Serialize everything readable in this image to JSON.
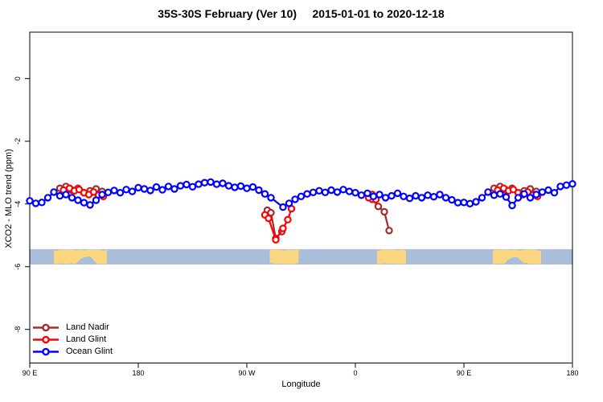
{
  "chart_data": {
    "type": "line",
    "title": "35S-30S February (Ver 10)     2015-01-01 to 2020-12-18",
    "xlabel": "Longitude",
    "ylabel": "XCO2 - MLO trend (ppm)",
    "grid": false,
    "x_axis": {
      "wraps_eastward_from": "90E",
      "span_degrees": [
        90,
        540
      ],
      "ticks": [
        {
          "deg": 90,
          "label": "90 E"
        },
        {
          "deg": 180,
          "label": "180"
        },
        {
          "deg": 270,
          "label": "90 W"
        },
        {
          "deg": 360,
          "label": "0"
        },
        {
          "deg": 450,
          "label": "90 E"
        },
        {
          "deg": 540,
          "label": "180"
        }
      ]
    },
    "y_axis": {
      "range": [
        -9.1,
        1.5
      ],
      "ticks": [
        {
          "value": 0,
          "label": "0"
        },
        {
          "value": -2,
          "label": "-2"
        },
        {
          "value": -4,
          "label": "-4"
        },
        {
          "value": -6,
          "label": "-6"
        },
        {
          "value": -8,
          "label": "-8"
        }
      ]
    },
    "legend": {
      "position": "bottom-left"
    },
    "series": [
      {
        "name": "Land Nadir",
        "color": "#a52a2a",
        "segments": [
          [
            [
              115,
              -3.5
            ],
            [
              120,
              -3.44
            ],
            [
              125,
              -3.56
            ],
            [
              130,
              -3.5
            ],
            [
              135,
              -3.64
            ],
            [
              140,
              -3.58
            ],
            [
              145,
              -3.52
            ],
            [
              150,
              -3.6
            ]
          ],
          [
            [
              287,
              -4.2
            ],
            [
              290,
              -4.28
            ],
            [
              294,
              -5.1
            ],
            [
              299,
              -4.88
            ]
          ],
          [
            [
              374,
              -3.85
            ],
            [
              379,
              -4.08
            ],
            [
              384,
              -4.25
            ],
            [
              388,
              -4.85
            ]
          ],
          [
            [
              475,
              -3.5
            ],
            [
              480,
              -3.44
            ],
            [
              485,
              -3.56
            ],
            [
              490,
              -3.5
            ],
            [
              495,
              -3.64
            ],
            [
              500,
              -3.58
            ],
            [
              505,
              -3.52
            ],
            [
              510,
              -3.6
            ]
          ]
        ]
      },
      {
        "name": "Land Glint",
        "color": "#ff0000",
        "segments": [
          [
            [
              118,
              -3.56
            ],
            [
              123,
              -3.5
            ],
            [
              127,
              -3.58
            ],
            [
              131,
              -3.54
            ],
            [
              135,
              -3.64
            ],
            [
              139,
              -3.7
            ],
            [
              143,
              -3.62
            ],
            [
              147,
              -3.72
            ],
            [
              151,
              -3.76
            ]
          ],
          [
            [
              285,
              -4.35
            ],
            [
              288,
              -4.46
            ],
            [
              294,
              -5.14
            ],
            [
              300,
              -4.78
            ],
            [
              304,
              -4.5
            ],
            [
              307,
              -4.15
            ]
          ],
          [
            [
              371,
              -3.8
            ],
            [
              374,
              -3.7
            ],
            [
              377,
              -3.86
            ]
          ],
          [
            [
              478,
              -3.56
            ],
            [
              483,
              -3.5
            ],
            [
              487,
              -3.58
            ],
            [
              491,
              -3.54
            ],
            [
              495,
              -3.64
            ],
            [
              499,
              -3.7
            ],
            [
              503,
              -3.62
            ],
            [
              507,
              -3.72
            ],
            [
              511,
              -3.76
            ]
          ]
        ]
      },
      {
        "name": "Ocean Glint",
        "color": "#0000ff",
        "segments": [
          [
            [
              90,
              -3.9
            ],
            [
              95,
              -3.98
            ],
            [
              100,
              -3.95
            ],
            [
              105,
              -3.8
            ],
            [
              110,
              -3.62
            ],
            [
              115,
              -3.74
            ],
            [
              120,
              -3.7
            ],
            [
              125,
              -3.8
            ],
            [
              130,
              -3.88
            ],
            [
              135,
              -3.96
            ],
            [
              140,
              -4.03
            ],
            [
              145,
              -3.88
            ],
            [
              150,
              -3.7
            ],
            [
              155,
              -3.63
            ],
            [
              160,
              -3.57
            ],
            [
              165,
              -3.64
            ],
            [
              170,
              -3.54
            ],
            [
              175,
              -3.6
            ],
            [
              180,
              -3.48
            ],
            [
              185,
              -3.52
            ],
            [
              190,
              -3.57
            ],
            [
              195,
              -3.46
            ],
            [
              200,
              -3.55
            ],
            [
              205,
              -3.44
            ],
            [
              210,
              -3.52
            ],
            [
              215,
              -3.42
            ],
            [
              220,
              -3.38
            ],
            [
              225,
              -3.45
            ],
            [
              230,
              -3.37
            ],
            [
              235,
              -3.32
            ],
            [
              240,
              -3.3
            ],
            [
              245,
              -3.37
            ],
            [
              250,
              -3.34
            ],
            [
              255,
              -3.42
            ],
            [
              260,
              -3.47
            ],
            [
              265,
              -3.43
            ],
            [
              270,
              -3.5
            ],
            [
              275,
              -3.46
            ],
            [
              280,
              -3.56
            ],
            [
              285,
              -3.68
            ],
            [
              290,
              -3.8
            ],
            [
              300,
              -4.1
            ],
            [
              305,
              -3.98
            ],
            [
              310,
              -3.85
            ],
            [
              315,
              -3.76
            ],
            [
              320,
              -3.68
            ],
            [
              325,
              -3.63
            ],
            [
              330,
              -3.58
            ],
            [
              335,
              -3.63
            ],
            [
              340,
              -3.56
            ],
            [
              345,
              -3.62
            ],
            [
              350,
              -3.54
            ],
            [
              355,
              -3.6
            ],
            [
              360,
              -3.64
            ],
            [
              365,
              -3.72
            ],
            [
              370,
              -3.66
            ],
            [
              375,
              -3.76
            ],
            [
              380,
              -3.7
            ],
            [
              385,
              -3.8
            ],
            [
              390,
              -3.74
            ],
            [
              395,
              -3.66
            ],
            [
              400,
              -3.76
            ],
            [
              405,
              -3.82
            ],
            [
              410,
              -3.74
            ],
            [
              415,
              -3.8
            ],
            [
              420,
              -3.72
            ],
            [
              425,
              -3.77
            ],
            [
              430,
              -3.7
            ],
            [
              435,
              -3.8
            ],
            [
              440,
              -3.87
            ],
            [
              445,
              -3.96
            ],
            [
              450,
              -3.95
            ],
            [
              455,
              -3.99
            ],
            [
              460,
              -3.93
            ],
            [
              465,
              -3.8
            ],
            [
              470,
              -3.62
            ],
            [
              475,
              -3.72
            ],
            [
              480,
              -3.68
            ],
            [
              485,
              -3.78
            ],
            [
              490,
              -4.05
            ],
            [
              495,
              -3.8
            ],
            [
              500,
              -3.68
            ],
            [
              505,
              -3.8
            ],
            [
              510,
              -3.7
            ],
            [
              515,
              -3.62
            ],
            [
              520,
              -3.56
            ],
            [
              525,
              -3.64
            ],
            [
              530,
              -3.44
            ],
            [
              535,
              -3.4
            ],
            [
              540,
              -3.36
            ]
          ]
        ]
      }
    ],
    "land_ocean_strip": {
      "ocean_color": "#a9bedb",
      "land_color": "#fad77e",
      "value_top": -5.44,
      "value_bottom": -5.93,
      "land_patches": [
        {
          "name": "australia",
          "from_deg": 110,
          "to_deg": 154,
          "bight": [
            128,
            146
          ]
        },
        {
          "name": "south-america",
          "from_deg": 289,
          "to_deg": 313
        },
        {
          "name": "south-africa",
          "from_deg": 378,
          "to_deg": 402
        },
        {
          "name": "australia-wrap",
          "from_deg": 474,
          "to_deg": 514,
          "bight": [
            484,
            500
          ]
        }
      ]
    }
  }
}
